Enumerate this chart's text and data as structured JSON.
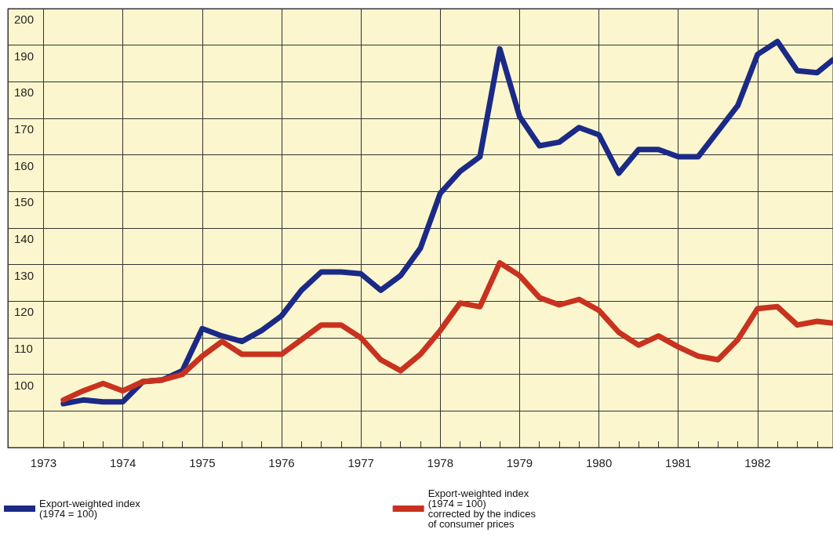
{
  "chart_data": {
    "type": "line",
    "x": [
      1973.25,
      1973.5,
      1973.75,
      1974,
      1974.25,
      1974.5,
      1974.75,
      1975,
      1975.25,
      1975.5,
      1975.75,
      1976,
      1976.25,
      1976.5,
      1976.75,
      1977,
      1977.25,
      1977.5,
      1977.75,
      1978,
      1978.25,
      1978.5,
      1978.75,
      1979,
      1979.25,
      1979.5,
      1979.75,
      1980,
      1980.25,
      1980.5,
      1980.75,
      1981,
      1981.25,
      1981.5,
      1981.75,
      1982,
      1982.25,
      1982.5,
      1982.75,
      1982.95
    ],
    "series": [
      {
        "name": "Export-weighted index\n(1974 = 100)",
        "color": "#1b2a86",
        "values": [
          92,
          93,
          92.5,
          92.5,
          98,
          98.5,
          101,
          112.5,
          110.5,
          109,
          112,
          116,
          123,
          128,
          128,
          127.5,
          123,
          127,
          134.5,
          149.5,
          155.5,
          159.5,
          189,
          170.5,
          162.5,
          163.5,
          167.5,
          165.5,
          155,
          161.5,
          161.5,
          159.5,
          159.5,
          166.5,
          173.5,
          187.5,
          191,
          183,
          182.5,
          186
        ]
      },
      {
        "name": "Export-weighted index\n(1974 = 100)\ncorrected by the indices\nof consumer prices",
        "color": "#c8321e",
        "values": [
          93,
          95.5,
          97.5,
          95.5,
          98,
          98.5,
          100,
          105,
          109,
          105.5,
          105.5,
          105.5,
          109.5,
          113.5,
          113.5,
          110,
          104,
          101,
          105.5,
          112,
          119.5,
          118.5,
          130.5,
          127,
          121,
          119,
          120.5,
          117.5,
          111.5,
          108,
          110.5,
          107.5,
          105,
          104,
          109.5,
          118,
          118.5,
          113.5,
          114.5,
          114
        ]
      }
    ],
    "xlim": [
      1972.55,
      1982.95
    ],
    "xticks": [
      1973,
      {
        "value": 1973.25,
        "label": null
      },
      {
        "value": 1973.5,
        "label": null
      },
      {
        "value": 1973.75,
        "label": null
      },
      1974,
      {
        "value": 1974.25,
        "label": null
      },
      {
        "value": 1974.5,
        "label": null
      },
      {
        "value": 1974.75,
        "label": null
      },
      1975,
      {
        "value": 1975.25,
        "label": null
      },
      {
        "value": 1975.5,
        "label": null
      },
      {
        "value": 1975.75,
        "label": null
      },
      1976,
      {
        "value": 1976.25,
        "label": null
      },
      {
        "value": 1976.5,
        "label": null
      },
      {
        "value": 1976.75,
        "label": null
      },
      1977,
      {
        "value": 1977.25,
        "label": null
      },
      {
        "value": 1977.5,
        "label": null
      },
      {
        "value": 1977.75,
        "label": null
      },
      1978,
      {
        "value": 1978.25,
        "label": null
      },
      {
        "value": 1978.5,
        "label": null
      },
      {
        "value": 1978.75,
        "label": null
      },
      1979,
      {
        "value": 1979.25,
        "label": null
      },
      {
        "value": 1979.5,
        "label": null
      },
      {
        "value": 1979.75,
        "label": null
      },
      1980,
      {
        "value": 1980.25,
        "label": null
      },
      {
        "value": 1980.5,
        "label": null
      },
      {
        "value": 1980.75,
        "label": null
      },
      1981,
      {
        "value": 1981.25,
        "label": null
      },
      {
        "value": 1981.5,
        "label": null
      },
      {
        "value": 1981.75,
        "label": null
      },
      1982,
      {
        "value": 1982.25,
        "label": null
      },
      {
        "value": 1982.5,
        "label": null
      },
      {
        "value": 1982.75,
        "label": null
      }
    ],
    "ylim": [
      80,
      200
    ],
    "yticks": [
      {
        "value": 90,
        "label": null
      },
      100,
      110,
      120,
      130,
      140,
      150,
      160,
      170,
      180,
      190,
      200
    ],
    "grid": true,
    "legend": "bottom",
    "marker": "none",
    "line_style": "solid"
  }
}
